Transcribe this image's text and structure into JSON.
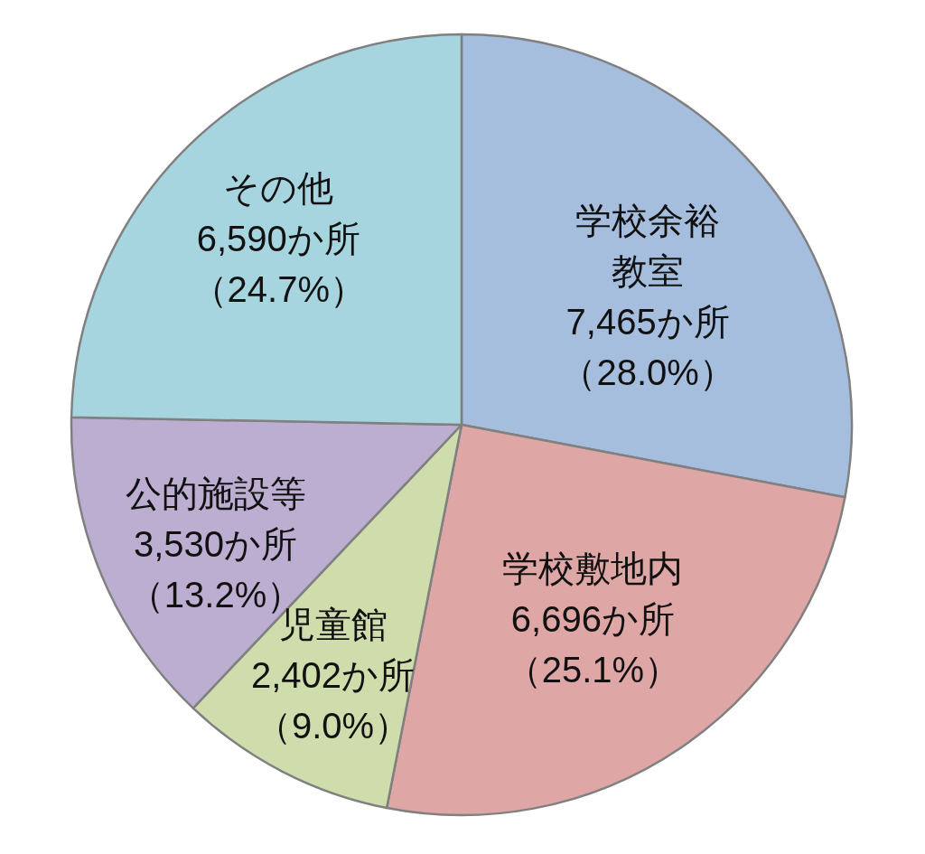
{
  "chart_data": {
    "type": "pie",
    "categories": [
      "学校余裕教室",
      "学校敷地内",
      "児童館",
      "公的施設等",
      "その他"
    ],
    "values": [
      7465,
      6696,
      2402,
      3530,
      6590
    ],
    "colors": [
      "#a6bede",
      "#dea6a5",
      "#cfdcab",
      "#bcaed0",
      "#a6d5e0"
    ],
    "value_labels": [
      "7,465か所（28.0%）",
      "6,696か所（25.1%）",
      "2,402か所（9.0%）",
      "3,530か所（13.2%）",
      "6,590か所（24.7%）"
    ]
  }
}
